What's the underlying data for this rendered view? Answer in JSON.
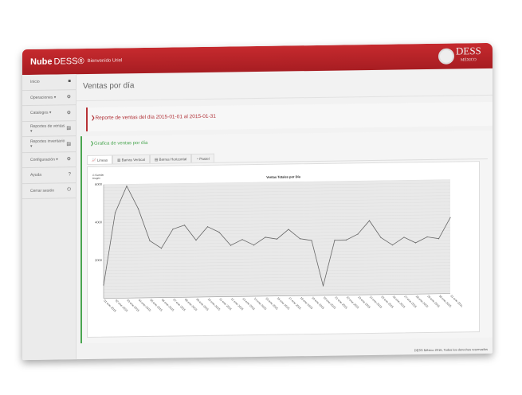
{
  "header": {
    "brand_bold": "Nube",
    "brand": "DESS®",
    "welcome": "Bienvenido Uriel",
    "logo_text": "DESS",
    "logo_sub": "MÉXICO"
  },
  "sidebar": {
    "items": [
      {
        "label": "Inicio",
        "icon": "home-icon",
        "glyph": "■"
      },
      {
        "label": "Operaciones ▾",
        "icon": "gear-icon",
        "glyph": "⚙"
      },
      {
        "label": "Catalogos ▾",
        "icon": "gear-icon",
        "glyph": "⚙"
      },
      {
        "label": "Reportes de ventas ▾",
        "icon": "report-icon",
        "glyph": "▤"
      },
      {
        "label": "Reportes inventario ▾",
        "icon": "report-icon",
        "glyph": "▤"
      },
      {
        "label": "Configuración ▾",
        "icon": "gear-icon",
        "glyph": "⚙"
      },
      {
        "label": "Ayuda",
        "icon": "help-icon",
        "glyph": "?"
      },
      {
        "label": "Cerrar sesión",
        "icon": "power-icon",
        "glyph": "⏻"
      }
    ]
  },
  "page": {
    "title": "Ventas por día",
    "report_header": "❯Reporte de ventas del día 2015-01-01 al 2015-01-31",
    "chart_header": "❯Grafica de ventas por día",
    "tabs": [
      "Lineas",
      "Barras Vertical",
      "Barras Horizontal",
      "Pastel"
    ],
    "export_label": "Guardar imagen"
  },
  "footer": "DESS México 2016, Todos los derechos reservados",
  "chart_data": {
    "type": "line",
    "title": "Ventas Totales por Día",
    "ylim": [
      0,
      6000
    ],
    "yticks": [
      2000,
      4000,
      6000
    ],
    "grid": true,
    "x": [
      "01-ene-2015",
      "02-ene-2015",
      "03-ene-2015",
      "04-ene-2015",
      "05-ene-2015",
      "06-ene-2015",
      "07-ene-2015",
      "08-ene-2015",
      "09-ene-2015",
      "10-ene-2015",
      "11-ene-2015",
      "12-ene-2015",
      "13-ene-2015",
      "14-ene-2015",
      "15-ene-2015",
      "16-ene-2015",
      "17-ene-2015",
      "18-ene-2015",
      "19-ene-2015",
      "20-ene-2015",
      "21-ene-2015",
      "22-ene-2015",
      "23-ene-2015",
      "24-ene-2015",
      "25-ene-2015",
      "26-ene-2015",
      "27-ene-2015",
      "28-ene-2015",
      "29-ene-2015",
      "30-ene-2015",
      "31-ene-2015"
    ],
    "values": [
      700,
      4500,
      5900,
      4700,
      3000,
      2600,
      3600,
      3800,
      3000,
      3700,
      3400,
      2700,
      3000,
      2700,
      3100,
      3000,
      3500,
      3000,
      2900,
      500,
      2900,
      2900,
      3200,
      3900,
      3000,
      2600,
      3000,
      2700,
      3000,
      2900,
      4000
    ]
  }
}
